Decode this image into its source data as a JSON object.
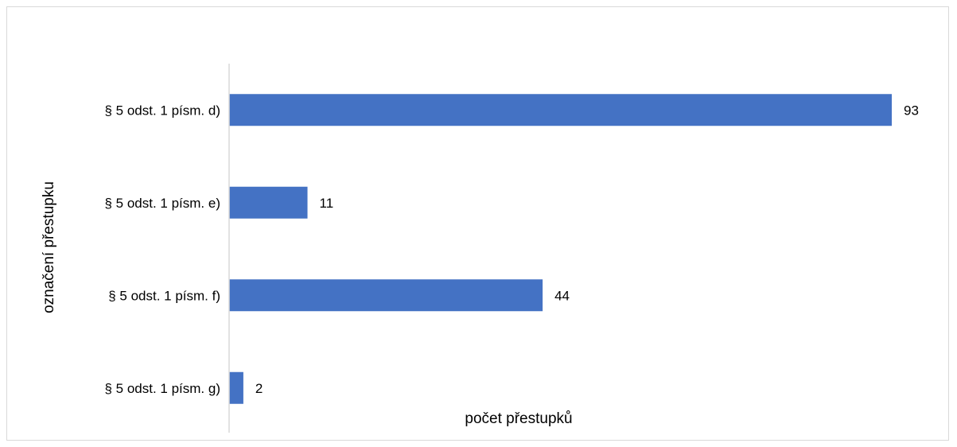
{
  "chart_data": {
    "type": "bar",
    "orientation": "horizontal",
    "categories": [
      "§ 5 odst. 1 písm. d)",
      "§ 5 odst. 1 písm. e)",
      "§ 5 odst. 1 písm. f)",
      "§ 5 odst. 1 písm. g)"
    ],
    "values": [
      93,
      11,
      44,
      2
    ],
    "xlabel": "počet přestupků",
    "ylabel": "označení přestupku",
    "xlim": [
      0,
      93
    ],
    "grid": false,
    "legend": "none",
    "data_labels": true,
    "bar_color": "#4472C4",
    "axis_color": "#d9d9d9"
  }
}
